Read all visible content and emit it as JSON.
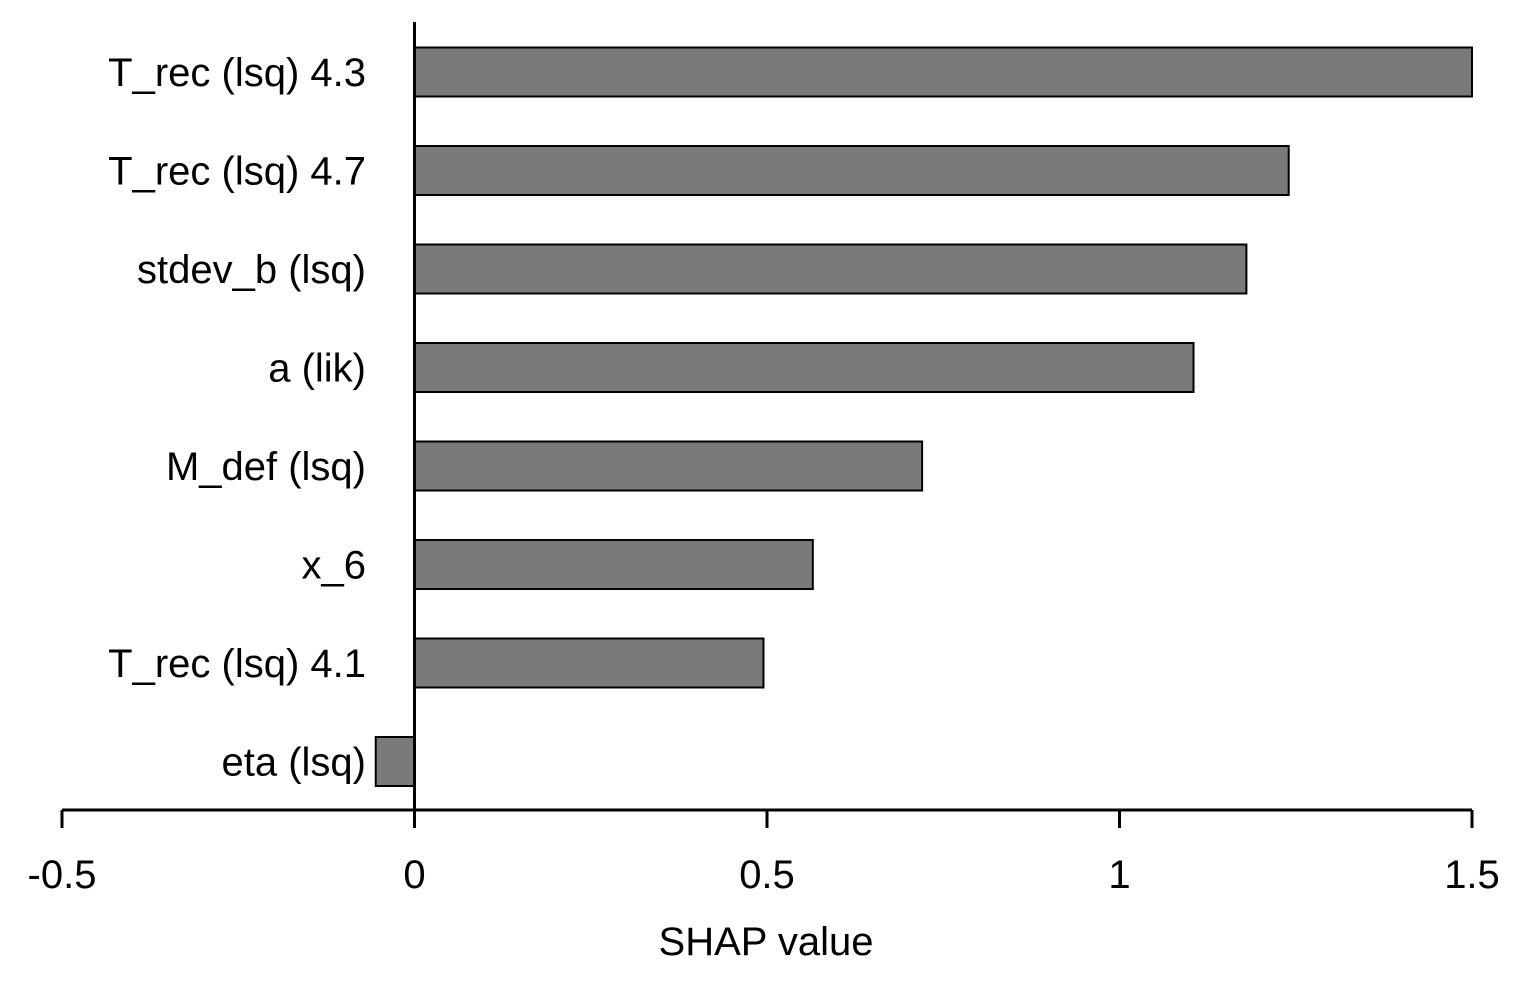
{
  "chart_data": {
    "type": "bar",
    "orientation": "horizontal",
    "categories": [
      "T_rec (lsq) 4.3",
      "T_rec (lsq) 4.7",
      "stdev_b (lsq)",
      "a (lik)",
      "M_def (lsq)",
      "x_6",
      "T_rec (lsq) 4.1",
      "eta (lsq)"
    ],
    "values": [
      1.5,
      1.24,
      1.18,
      1.105,
      0.72,
      0.565,
      0.495,
      -0.055
    ],
    "title": "",
    "xlabel": "SHAP value",
    "ylabel": "",
    "xlim": [
      -0.5,
      1.5
    ],
    "xticks": [
      -0.5,
      0,
      0.5,
      1,
      1.5
    ],
    "xtick_labels": [
      "-0.5",
      "0",
      "0.5",
      "1",
      "1.5"
    ],
    "grid": false,
    "legend": "none",
    "bar_color": "#7a7a7a",
    "bar_edge_color": "#000000"
  }
}
